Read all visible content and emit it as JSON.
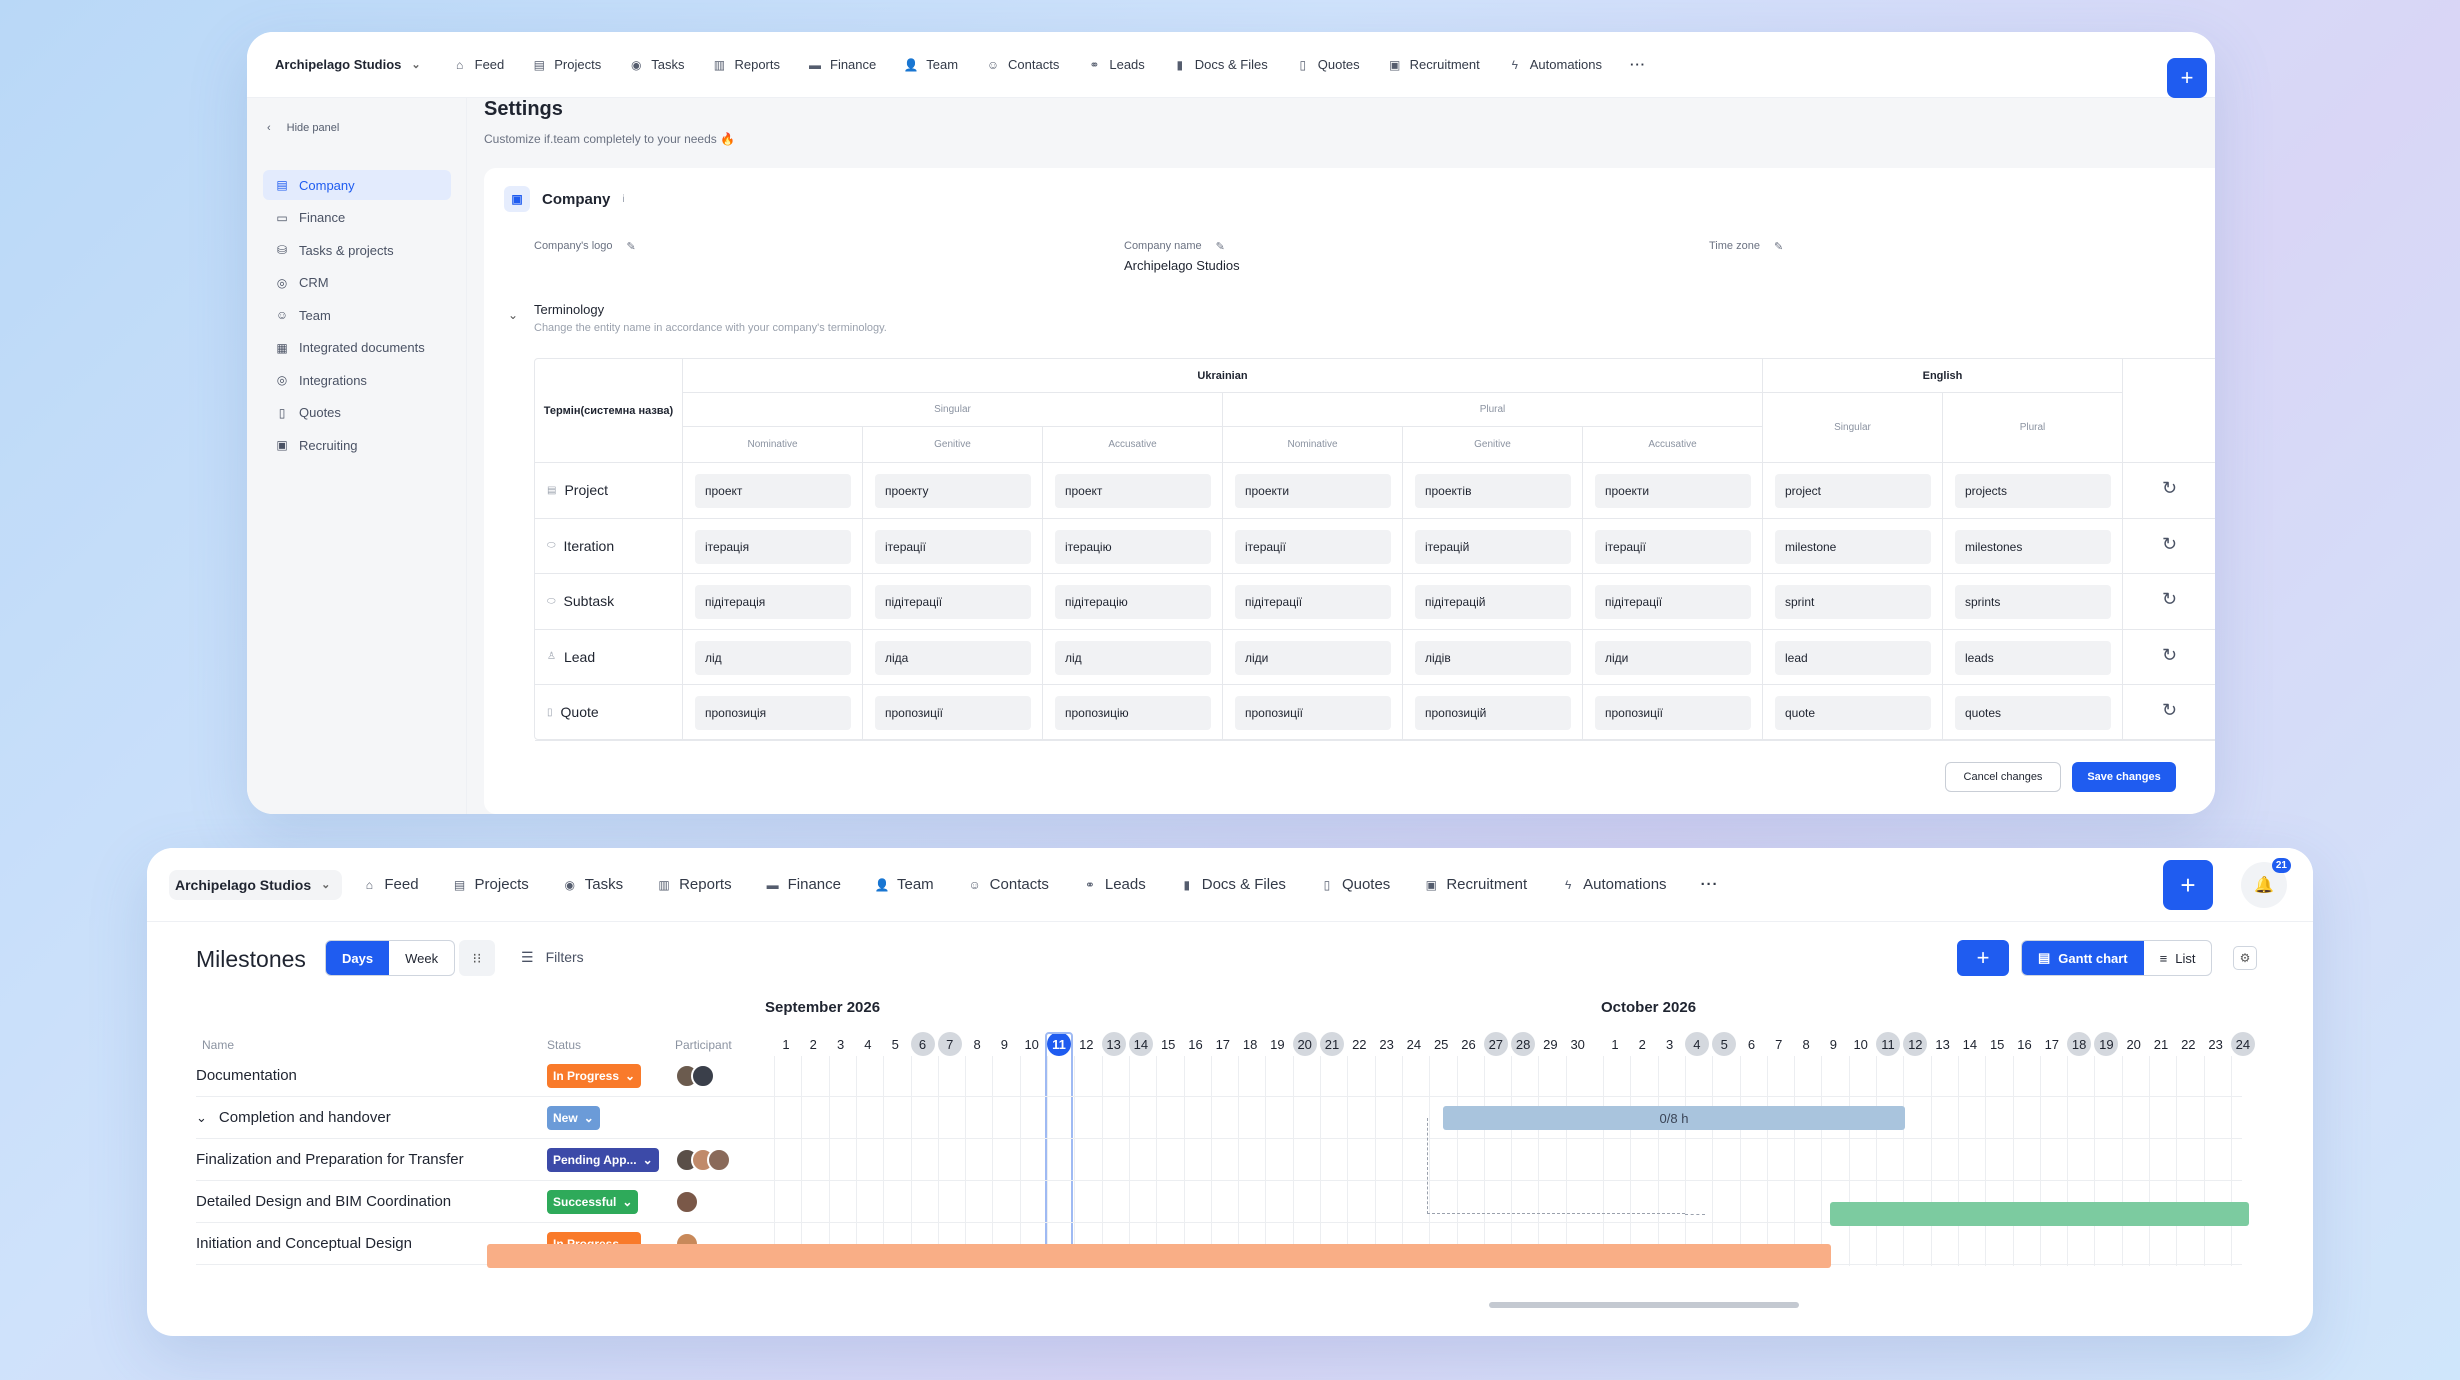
{
  "colors": {
    "accent": "#1f5cf0",
    "in_progress": "#f97a2a",
    "new": "#6b9bd8",
    "pending": "#3c4aa8",
    "successful": "#2eaa5a",
    "bar_blue": "#a9c4dd",
    "bar_green": "#7ccba0",
    "bar_orange": "#f9ae86"
  },
  "nav": {
    "workspace": "Archipelago Studios",
    "items": [
      {
        "label": "Feed",
        "icon": "home-icon"
      },
      {
        "label": "Projects",
        "icon": "file-icon"
      },
      {
        "label": "Tasks",
        "icon": "check-circle-icon"
      },
      {
        "label": "Reports",
        "icon": "report-icon"
      },
      {
        "label": "Finance",
        "icon": "finance-icon"
      },
      {
        "label": "Team",
        "icon": "user-icon"
      },
      {
        "label": "Contacts",
        "icon": "contacts-icon"
      },
      {
        "label": "Leads",
        "icon": "link-icon"
      },
      {
        "label": "Docs & Files",
        "icon": "docs-icon"
      },
      {
        "label": "Quotes",
        "icon": "quote-icon"
      },
      {
        "label": "Recruitment",
        "icon": "briefcase-icon"
      },
      {
        "label": "Automations",
        "icon": "bolt-icon"
      }
    ],
    "more": "···",
    "notif_count": "21"
  },
  "settings": {
    "title": "Settings",
    "subtitle": "Customize if.team completely to your needs 🔥",
    "hide_panel": "Hide panel",
    "sidebar": [
      "Company",
      "Finance",
      "Tasks & projects",
      "CRM",
      "Team",
      "Integrated documents",
      "Integrations",
      "Quotes",
      "Recruiting"
    ],
    "company": {
      "title": "Company",
      "info": "i",
      "logo_label": "Company's logo",
      "name_label": "Company name",
      "name_value": "Archipelago Studios",
      "tz_label": "Time zone"
    },
    "terminology": {
      "title": "Terminology",
      "subtitle": "Change the entity name in accordance with your company's terminology.",
      "col_term": "Термін(системна назва)",
      "ukrainian": "Ukrainian",
      "english": "English",
      "singular": "Singular",
      "plural": "Plural",
      "cases": [
        "Nominative",
        "Genitive",
        "Accusative",
        "Nominative",
        "Genitive",
        "Accusative"
      ],
      "rows": [
        {
          "label": "Project",
          "values": [
            "проект",
            "проекту",
            "проект",
            "проекти",
            "проектів",
            "проекти",
            "project",
            "projects"
          ]
        },
        {
          "label": "Iteration",
          "values": [
            "ітерація",
            "ітерації",
            "ітерацію",
            "ітерації",
            "ітерацій",
            "ітерації",
            "milestone",
            "milestones"
          ]
        },
        {
          "label": "Subtask",
          "values": [
            "підітерація",
            "підітерації",
            "підітерацію",
            "підітерації",
            "підітерацій",
            "підітерації",
            "sprint",
            "sprints"
          ]
        },
        {
          "label": "Lead",
          "values": [
            "лід",
            "ліда",
            "лід",
            "ліди",
            "лідів",
            "ліди",
            "lead",
            "leads"
          ]
        },
        {
          "label": "Quote",
          "values": [
            "пропозиція",
            "пропозиції",
            "пропозицію",
            "пропозиції",
            "пропозицій",
            "пропозиції",
            "quote",
            "quotes"
          ]
        }
      ]
    },
    "cancel": "Cancel changes",
    "save": "Save changes"
  },
  "milestones": {
    "title": "Milestones",
    "view_days": "Days",
    "view_week": "Week",
    "filters": "Filters",
    "gantt": "Gantt chart",
    "list": "List",
    "col_name": "Name",
    "col_status": "Status",
    "col_participant": "Participant",
    "month1": "September 2026",
    "month2": "October 2026",
    "sep_days": [
      "1",
      "2",
      "3",
      "4",
      "5",
      "6",
      "7",
      "8",
      "9",
      "10",
      "11",
      "12",
      "13",
      "14",
      "15",
      "16",
      "17",
      "18",
      "19",
      "20",
      "21",
      "22",
      "23",
      "24",
      "25",
      "26",
      "27",
      "28",
      "29",
      "30"
    ],
    "oct_days": [
      "1",
      "2",
      "3",
      "4",
      "5",
      "6",
      "7",
      "8",
      "9",
      "10",
      "11",
      "12",
      "13",
      "14",
      "15",
      "16",
      "17",
      "18",
      "19",
      "20",
      "21",
      "22",
      "23",
      "24"
    ],
    "today": "11",
    "rows": [
      {
        "name": "Documentation",
        "status": "In Progress",
        "participants": 2
      },
      {
        "name": "Completion and handover",
        "status": "New",
        "participants": 0
      },
      {
        "name": "Finalization and Preparation for Transfer",
        "status": "Pending App...",
        "participants": 3
      },
      {
        "name": "Detailed Design and BIM Coordination",
        "status": "Successful",
        "participants": 1
      },
      {
        "name": "Initiation and Conceptual Design",
        "status": "In Progress",
        "participants": 1
      }
    ],
    "bar_label": "0/8 h"
  }
}
